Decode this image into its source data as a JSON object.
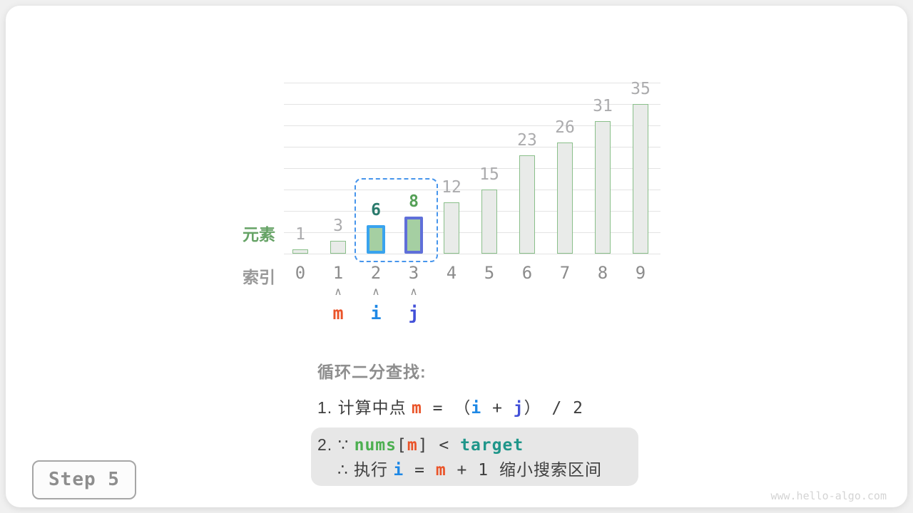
{
  "colors": {
    "m": "#EA5328",
    "i": "#1E88E5",
    "j": "#4250D8",
    "nums_green": "#4CAF50",
    "target_teal": "#1F968A",
    "text_dark": "#3F3F3F",
    "text_gray": "#8E8E8E",
    "bar_fill": "#E9EBE9",
    "bar_stroke": "#8ABF8A",
    "highlight_fill": "#A5CFA2",
    "window_blue": "#4795EC",
    "value_gray": "#ABABAD",
    "grid_gray": "#E3E3E3",
    "ylabel_green": "#66A366",
    "note_bg": "#E7E7E7",
    "watermark_gray": "#D4D4D4"
  },
  "chart_data": {
    "type": "bar",
    "title": "",
    "categories": [
      "0",
      "1",
      "2",
      "3",
      "4",
      "5",
      "6",
      "7",
      "8",
      "9"
    ],
    "values": [
      1,
      3,
      6,
      8,
      12,
      15,
      23,
      26,
      31,
      35
    ],
    "xlabel": "索引",
    "ylabel": "元素",
    "ylim": [
      0,
      40
    ],
    "grid_step": 5,
    "grid": true,
    "legend": "none",
    "highlights": [
      {
        "index": 2,
        "border_color": "#39A3EE",
        "label_color": "#2A7A6C"
      },
      {
        "index": 3,
        "border_color": "#5F6FD9",
        "label_color": "#55A057"
      }
    ],
    "window_indices": [
      2,
      3
    ],
    "pointers": [
      {
        "label": "m",
        "index": 1,
        "color": "#EA5328"
      },
      {
        "label": "i",
        "index": 2,
        "color": "#1E88E5"
      },
      {
        "label": "j",
        "index": 3,
        "color": "#4250D8"
      }
    ]
  },
  "text": {
    "title": "循环二分查找:",
    "line1": [
      {
        "t": "1. 计算中点 ",
        "color": "text_dark"
      },
      {
        "t": "m",
        "color": "m",
        "bold": true,
        "mono": true
      },
      {
        "t": " = ",
        "color": "text_dark",
        "mono": true
      },
      {
        "t": "（",
        "color": "text_dark"
      },
      {
        "t": "i",
        "color": "i",
        "bold": true,
        "mono": true
      },
      {
        "t": " + ",
        "color": "text_dark",
        "mono": true
      },
      {
        "t": "j",
        "color": "j",
        "bold": true,
        "mono": true
      },
      {
        "t": "）",
        "color": "text_dark"
      },
      {
        "t": " / 2",
        "color": "text_dark",
        "mono": true
      }
    ],
    "line2": [
      {
        "t": "2. ∵ ",
        "color": "text_dark"
      },
      {
        "t": "nums",
        "color": "nums_green",
        "bold": true,
        "mono": true
      },
      {
        "t": "[",
        "color": "text_dark",
        "mono": true
      },
      {
        "t": "m",
        "color": "m",
        "bold": true,
        "mono": true
      },
      {
        "t": "] < ",
        "color": "text_dark",
        "mono": true
      },
      {
        "t": "target",
        "color": "target_teal",
        "bold": true,
        "mono": true
      }
    ],
    "line3": [
      {
        "t": "∴ 执行 ",
        "color": "text_dark"
      },
      {
        "t": "i",
        "color": "i",
        "bold": true,
        "mono": true
      },
      {
        "t": " = ",
        "color": "text_dark",
        "mono": true
      },
      {
        "t": "m",
        "color": "m",
        "bold": true,
        "mono": true
      },
      {
        "t": " + 1 ",
        "color": "text_dark",
        "mono": true
      },
      {
        "t": "缩小搜索区间",
        "color": "text_dark"
      }
    ]
  },
  "step_label": "Step 5",
  "watermark": "www.hello-algo.com",
  "pointer_arrow_glyph": "∧"
}
